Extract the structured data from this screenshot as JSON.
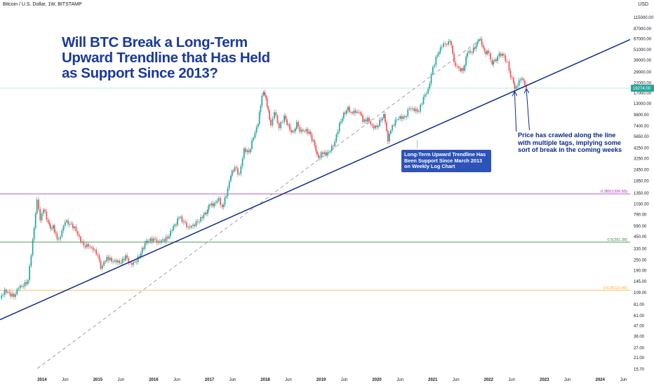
{
  "header": {
    "symbol": "Bitcoin / U.S. Dollar, 1W, BITSTAMP",
    "currency": "USD"
  },
  "headline": {
    "line1": "Will BTC Break a Long-Term",
    "line2": "Upward Trendline that Has Held",
    "line3": "as Support Since 2013?"
  },
  "annotations": {
    "price_note": "Price has crawled along the line with multiple tags, implying some sort of break in the coming weeks",
    "trend_note": "Long-Term Upward Trendline Has Been Support Since March 2013 on Weekly Log Chart"
  },
  "colors": {
    "up": "#26a69a",
    "down": "#ef5350",
    "trendline": "#0d2a8a",
    "dashed": "#9e9e9e",
    "fib_0382": "#9c27b0",
    "fib_05": "#388e3c",
    "fib_0618": "#f9a825",
    "price_tag": "#26a69a"
  },
  "chart_data": {
    "type": "candlestick",
    "title": "Will BTC Break a Long-Term Upward Trendline that Has Held as Support Since 2013?",
    "y_scale": "log",
    "ylim": [
      14.5,
      140000
    ],
    "xlim": [
      "2013-04-01",
      "2024-07-15"
    ],
    "y_ticks": [
      "115000.00",
      "87000.00",
      "67000.00",
      "51000.00",
      "39000.00",
      "29000.00",
      "22000.00",
      "17000.00",
      "13000.00",
      "9800.00",
      "7400.00",
      "5650.00",
      "4250.00",
      "3250.00",
      "2450.00",
      "1850.00",
      "1350.00",
      "1030.00",
      "790.00",
      "590.00",
      "450.00",
      "330.00",
      "250.00",
      "190.00",
      "145.00",
      "109.00",
      "81.00",
      "61.00",
      "47.00",
      "36.00",
      "27.00",
      "21.00",
      "15.70"
    ],
    "x_ticks": [
      {
        "label": "2014",
        "date": "2014-01-01",
        "major": true
      },
      {
        "label": "Jun",
        "date": "2014-06-01",
        "major": false
      },
      {
        "label": "2015",
        "date": "2015-01-01",
        "major": true
      },
      {
        "label": "Jun",
        "date": "2015-06-01",
        "major": false
      },
      {
        "label": "2016",
        "date": "2016-01-01",
        "major": true
      },
      {
        "label": "Jun",
        "date": "2016-06-01",
        "major": false
      },
      {
        "label": "2017",
        "date": "2017-01-01",
        "major": true
      },
      {
        "label": "Jun",
        "date": "2017-06-01",
        "major": false
      },
      {
        "label": "2018",
        "date": "2018-01-01",
        "major": true
      },
      {
        "label": "Jun",
        "date": "2018-06-01",
        "major": false
      },
      {
        "label": "2019",
        "date": "2019-01-01",
        "major": true
      },
      {
        "label": "Jun",
        "date": "2019-06-01",
        "major": false
      },
      {
        "label": "2020",
        "date": "2020-01-01",
        "major": true
      },
      {
        "label": "Jun",
        "date": "2020-06-01",
        "major": false
      },
      {
        "label": "2021",
        "date": "2021-01-01",
        "major": true
      },
      {
        "label": "Jun",
        "date": "2021-06-01",
        "major": false
      },
      {
        "label": "2022",
        "date": "2022-01-01",
        "major": true
      },
      {
        "label": "Jun",
        "date": "2022-06-01",
        "major": false
      },
      {
        "label": "2023",
        "date": "2023-01-01",
        "major": true
      },
      {
        "label": "Jun",
        "date": "2023-06-01",
        "major": false
      },
      {
        "label": "2024",
        "date": "2024-01-01",
        "major": true
      },
      {
        "label": "Jun",
        "date": "2024-06-01",
        "major": false
      }
    ],
    "last_price": {
      "value": 19274,
      "label": "19274.00"
    },
    "fib_levels": [
      {
        "ratio": "0.382",
        "value": 1326.55,
        "label": "0.382(1326.55)"
      },
      {
        "ratio": "0.5",
        "value": 391.38,
        "label": "0.5(391.38)"
      },
      {
        "ratio": "0.618",
        "value": 115.49,
        "label": "0.618(115.49)"
      }
    ],
    "trendline": {
      "start": {
        "date": "2013-04-01",
        "value": 55
      },
      "end": {
        "date": "2024-07-15",
        "value": 66000
      }
    },
    "dashed_line": {
      "start": {
        "date": "2013-12-01",
        "value": 16
      },
      "end": {
        "date": "2021-11-08",
        "value": 66000
      }
    },
    "series": [
      {
        "name": "BTC/USD weekly close",
        "points": [
          [
            "2013-04-01",
            94
          ],
          [
            "2013-05-01",
            118
          ],
          [
            "2013-06-01",
            108
          ],
          [
            "2013-07-01",
            98
          ],
          [
            "2013-08-01",
            122
          ],
          [
            "2013-09-01",
            128
          ],
          [
            "2013-10-01",
            150
          ],
          [
            "2013-11-01",
            420
          ],
          [
            "2013-11-29",
            1150
          ],
          [
            "2013-12-10",
            900
          ],
          [
            "2013-12-20",
            680
          ],
          [
            "2014-01-10",
            890
          ],
          [
            "2014-02-10",
            650
          ],
          [
            "2014-02-25",
            550
          ],
          [
            "2014-03-15",
            600
          ],
          [
            "2014-04-10",
            420
          ],
          [
            "2014-05-01",
            450
          ],
          [
            "2014-06-01",
            650
          ],
          [
            "2014-07-01",
            620
          ],
          [
            "2014-08-01",
            580
          ],
          [
            "2014-09-01",
            450
          ],
          [
            "2014-10-01",
            360
          ],
          [
            "2014-11-01",
            350
          ],
          [
            "2014-12-01",
            320
          ],
          [
            "2015-01-01",
            280
          ],
          [
            "2015-01-20",
            200
          ],
          [
            "2015-02-10",
            240
          ],
          [
            "2015-03-01",
            270
          ],
          [
            "2015-04-01",
            240
          ],
          [
            "2015-05-01",
            235
          ],
          [
            "2015-06-01",
            230
          ],
          [
            "2015-07-01",
            280
          ],
          [
            "2015-08-01",
            230
          ],
          [
            "2015-09-01",
            240
          ],
          [
            "2015-10-01",
            270
          ],
          [
            "2015-11-05",
            380
          ],
          [
            "2015-12-01",
            400
          ],
          [
            "2016-01-01",
            430
          ],
          [
            "2016-02-01",
            400
          ],
          [
            "2016-03-01",
            420
          ],
          [
            "2016-04-01",
            430
          ],
          [
            "2016-05-01",
            530
          ],
          [
            "2016-06-15",
            730
          ],
          [
            "2016-07-15",
            660
          ],
          [
            "2016-08-15",
            580
          ],
          [
            "2016-09-15",
            610
          ],
          [
            "2016-10-15",
            650
          ],
          [
            "2016-11-15",
            720
          ],
          [
            "2016-12-20",
            900
          ],
          [
            "2017-01-05",
            1000
          ],
          [
            "2017-02-01",
            1050
          ],
          [
            "2017-03-01",
            1200
          ],
          [
            "2017-03-25",
            950
          ],
          [
            "2017-04-20",
            1250
          ],
          [
            "2017-05-20",
            2100
          ],
          [
            "2017-06-15",
            2600
          ],
          [
            "2017-07-15",
            2200
          ],
          [
            "2017-08-15",
            4200
          ],
          [
            "2017-09-15",
            3800
          ],
          [
            "2017-10-15",
            5500
          ],
          [
            "2017-11-15",
            7800
          ],
          [
            "2017-12-10",
            16000
          ],
          [
            "2017-12-20",
            17500
          ],
          [
            "2018-01-05",
            15000
          ],
          [
            "2018-01-20",
            11000
          ],
          [
            "2018-02-06",
            7500
          ],
          [
            "2018-03-01",
            10500
          ],
          [
            "2018-04-01",
            7000
          ],
          [
            "2018-05-05",
            9600
          ],
          [
            "2018-06-10",
            6700
          ],
          [
            "2018-07-10",
            6500
          ],
          [
            "2018-07-25",
            8200
          ],
          [
            "2018-08-15",
            6400
          ],
          [
            "2018-09-15",
            6500
          ],
          [
            "2018-10-15",
            6400
          ],
          [
            "2018-11-20",
            4500
          ],
          [
            "2018-12-15",
            3300
          ],
          [
            "2019-01-01",
            3800
          ],
          [
            "2019-02-01",
            3500
          ],
          [
            "2019-03-01",
            3900
          ],
          [
            "2019-04-01",
            5000
          ],
          [
            "2019-05-01",
            8000
          ],
          [
            "2019-06-26",
            12000
          ],
          [
            "2019-07-15",
            10500
          ],
          [
            "2019-08-15",
            10300
          ],
          [
            "2019-09-15",
            10200
          ],
          [
            "2019-10-01",
            8200
          ],
          [
            "2019-11-01",
            9100
          ],
          [
            "2019-12-01",
            7500
          ],
          [
            "2020-01-01",
            7200
          ],
          [
            "2020-02-15",
            10000
          ],
          [
            "2020-03-13",
            5000
          ],
          [
            "2020-04-01",
            6600
          ],
          [
            "2020-05-01",
            8700
          ],
          [
            "2020-06-01",
            9500
          ],
          [
            "2020-07-01",
            9200
          ],
          [
            "2020-08-01",
            11500
          ],
          [
            "2020-09-01",
            10800
          ],
          [
            "2020-10-01",
            10700
          ],
          [
            "2020-11-01",
            15500
          ],
          [
            "2020-12-01",
            19000
          ],
          [
            "2021-01-01",
            33000
          ],
          [
            "2021-02-01",
            45000
          ],
          [
            "2021-03-01",
            55000
          ],
          [
            "2021-04-14",
            63000
          ],
          [
            "2021-05-01",
            57000
          ],
          [
            "2021-05-20",
            37000
          ],
          [
            "2021-06-20",
            32000
          ],
          [
            "2021-07-20",
            30000
          ],
          [
            "2021-08-15",
            47000
          ],
          [
            "2021-09-15",
            47500
          ],
          [
            "2021-10-20",
            63000
          ],
          [
            "2021-11-08",
            67000
          ],
          [
            "2021-12-05",
            49000
          ],
          [
            "2022-01-01",
            47000
          ],
          [
            "2022-01-24",
            35000
          ],
          [
            "2022-03-01",
            43000
          ],
          [
            "2022-04-01",
            46000
          ],
          [
            "2022-05-01",
            38000
          ],
          [
            "2022-05-15",
            30000
          ],
          [
            "2022-06-13",
            22000
          ],
          [
            "2022-06-20",
            19000
          ],
          [
            "2022-07-10",
            20500
          ],
          [
            "2022-07-28",
            24000
          ],
          [
            "2022-08-15",
            23500
          ],
          [
            "2022-09-05",
            19274
          ]
        ]
      }
    ]
  }
}
